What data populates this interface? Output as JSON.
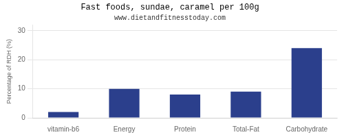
{
  "chart_data": {
    "type": "bar",
    "title": "Fast foods, sundae, caramel per 100g",
    "subtitle": "www.dietandfitnesstoday.com",
    "categories": [
      "vitamin-b6",
      "Energy",
      "Protein",
      "Total-Fat",
      "Carbohydrate"
    ],
    "values": [
      2.0,
      10.0,
      8.0,
      9.0,
      24.0
    ],
    "color": "#2b3f8c",
    "ylabel": "Percentage of RDH (%)",
    "ylim": [
      0,
      32
    ],
    "yticks": [
      0,
      10,
      20,
      30
    ],
    "grid": true
  }
}
